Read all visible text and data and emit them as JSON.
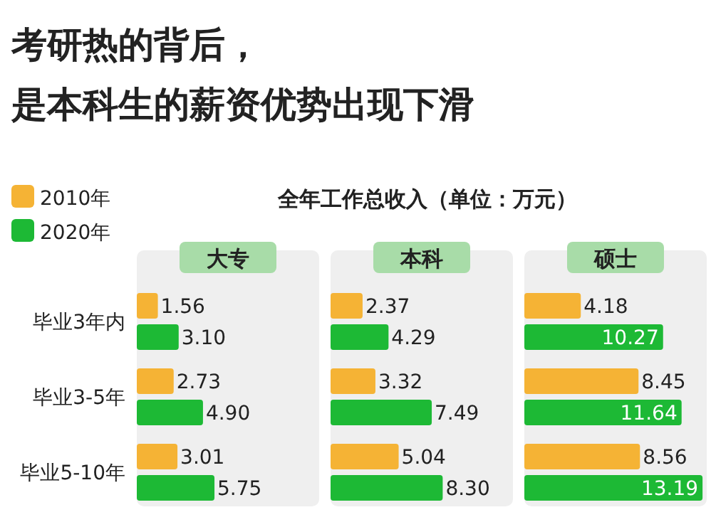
{
  "chart_data": [
    {
      "type": "other",
      "title": "考研热的背后，",
      "subtitle": "是本科生的薪资优势出现下滑",
      "annotations": [
        "全年工作总收入（单位：万元）"
      ]
    },
    {
      "type": "bar",
      "orientation": "horizontal",
      "title": "大专",
      "categories": [
        "毕业3年内",
        "毕业3-5年",
        "毕业5-10年"
      ],
      "xlim": [
        0,
        13.5
      ],
      "tick_labels": "y",
      "legend": "top left",
      "series": [
        {
          "name": "2010年",
          "color": "#f5b335",
          "values": [
            1.56,
            2.73,
            3.01
          ],
          "value_labels": [
            "1.56",
            "2.73",
            "3.01"
          ]
        },
        {
          "name": "2020年",
          "color": "#1db935",
          "values": [
            3.1,
            4.9,
            5.75
          ],
          "value_labels": [
            "3.10",
            "4.90",
            "5.75"
          ]
        }
      ]
    },
    {
      "type": "bar",
      "orientation": "horizontal",
      "title": "本科",
      "xlim": [
        0,
        13.5
      ],
      "tick_labels": false,
      "series": [
        {
          "color": "#f5b335",
          "values": [
            2.37,
            3.32,
            5.04
          ],
          "value_labels": [
            "2.37",
            "3.32",
            "5.04"
          ]
        },
        {
          "color": "#1db935",
          "values": [
            4.29,
            7.49,
            8.3
          ],
          "value_labels": [
            "4.29",
            "7.49",
            "8.30"
          ]
        }
      ]
    },
    {
      "type": "bar",
      "orientation": "horizontal",
      "title": "硕士",
      "xlim": [
        0,
        13.5
      ],
      "tick_labels": false,
      "series": [
        {
          "color": "#f5b335",
          "values": [
            4.18,
            8.45,
            8.56
          ],
          "value_labels": [
            "4.18",
            "8.45",
            "8.56"
          ]
        },
        {
          "color": "#1db935",
          "values": [
            10.27,
            11.64,
            13.19
          ],
          "value_labels": [
            "10.27",
            "11.64",
            "13.19"
          ]
        }
      ]
    }
  ]
}
